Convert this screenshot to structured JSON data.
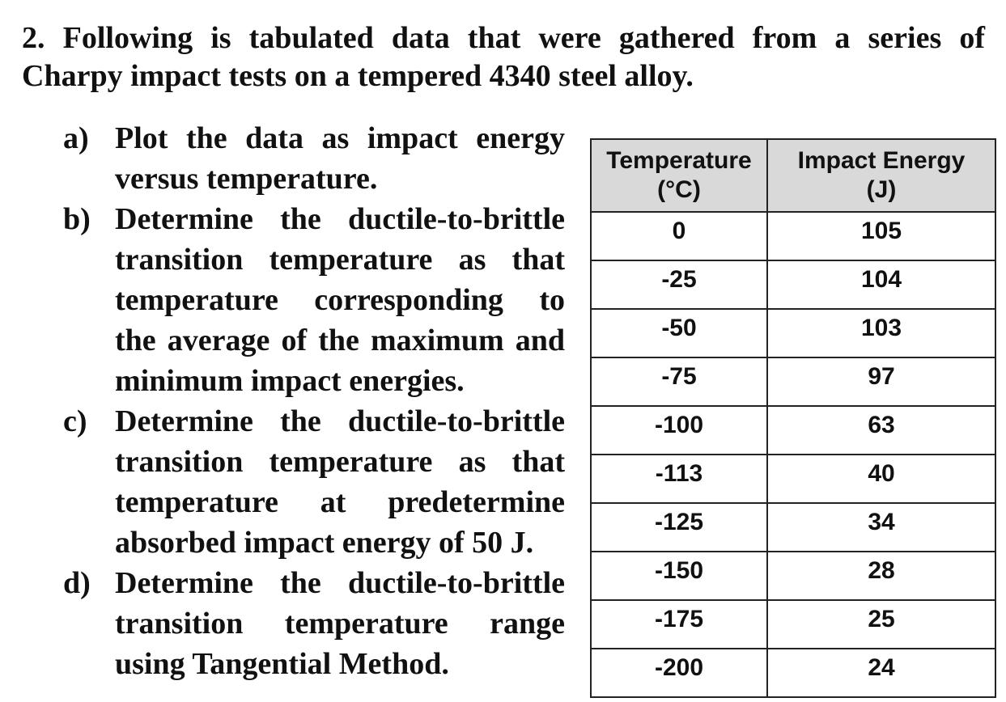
{
  "question": {
    "line1": "2. Following is tabulated data that were gathered from a series of",
    "line2": "Charpy impact tests on a tempered 4340 steel alloy."
  },
  "parts": [
    {
      "marker": "a)",
      "lines": [
        "Plot the data as impact energy",
        "versus temperature."
      ]
    },
    {
      "marker": "b)",
      "lines": [
        "Determine the ductile-to-brittle",
        "transition temperature as that",
        "temperature corresponding to",
        "the average of the maximum and",
        "minimum impact energies."
      ]
    },
    {
      "marker": "c)",
      "lines": [
        "Determine the ductile-to-brittle",
        "transition temperature as that",
        "temperature at predetermine",
        "absorbed impact energy of 50 J."
      ]
    },
    {
      "marker": "d)",
      "lines": [
        "Determine the ductile-to-brittle",
        "transition temperature range",
        "using Tangential Method."
      ]
    }
  ],
  "table": {
    "headers": [
      {
        "line1": "Temperature",
        "line2": "(°C)"
      },
      {
        "line1": "Impact Energy",
        "line2": "(J)"
      }
    ],
    "rows": [
      [
        "0",
        "105"
      ],
      [
        "-25",
        "104"
      ],
      [
        "-50",
        "103"
      ],
      [
        "-75",
        "97"
      ],
      [
        "-100",
        "63"
      ],
      [
        "-113",
        "40"
      ],
      [
        "-125",
        "34"
      ],
      [
        "-150",
        "28"
      ],
      [
        "-175",
        "25"
      ],
      [
        "-200",
        "24"
      ]
    ]
  },
  "colors": {
    "header_bg": "#d9d9d9",
    "border": "#222222",
    "text": "#111111"
  }
}
